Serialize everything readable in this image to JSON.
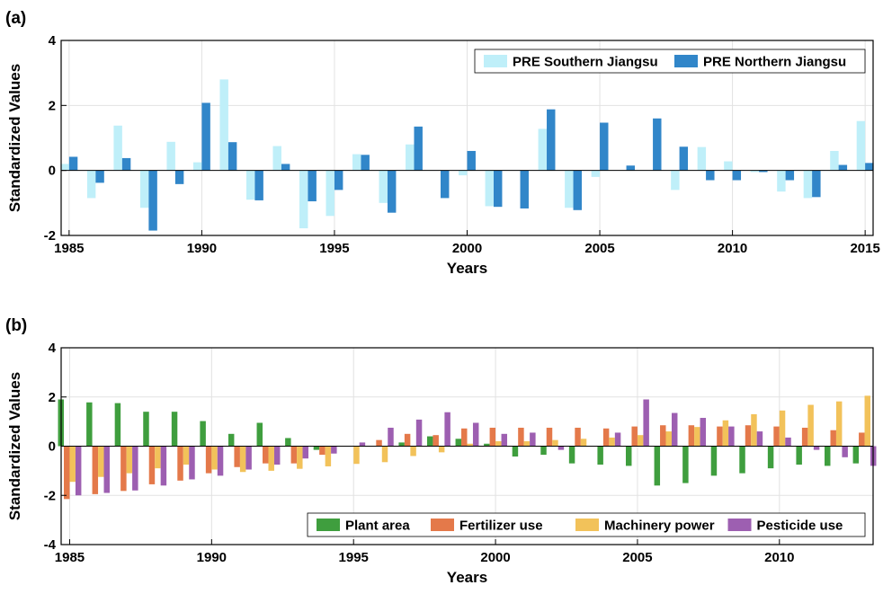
{
  "colors": {
    "pre_south": "#bfeff9",
    "pre_north": "#3186c9",
    "plant_area": "#3f9e3e",
    "fertilizer": "#e4794a",
    "machinery": "#f2c25a",
    "pesticide": "#9d5fb1"
  },
  "chart_data": [
    {
      "panel_label": "(a)",
      "type": "bar",
      "xlabel": "Years",
      "ylabel": "Standardized Values",
      "xlim": [
        1984.7,
        2015.3
      ],
      "ylim": [
        -2,
        4
      ],
      "xticks": [
        1985,
        1990,
        1995,
        2000,
        2005,
        2010,
        2015
      ],
      "yticks": [
        -2,
        0,
        2,
        4
      ],
      "grid": true,
      "legend_position": "top-right",
      "x": [
        1985,
        1986,
        1987,
        1988,
        1989,
        1990,
        1991,
        1992,
        1993,
        1994,
        1995,
        1996,
        1997,
        1998,
        1999,
        2000,
        2001,
        2002,
        2003,
        2004,
        2005,
        2006,
        2007,
        2008,
        2009,
        2010,
        2011,
        2012,
        2013,
        2014,
        2015
      ],
      "series": [
        {
          "name": "PRE Southern Jiangsu",
          "color_key": "pre_south",
          "values": [
            0.2,
            -0.85,
            1.38,
            -1.15,
            0.88,
            0.25,
            2.8,
            -0.9,
            0.75,
            -1.78,
            -1.4,
            0.5,
            -1.0,
            0.8,
            0.0,
            -0.15,
            -1.1,
            0.0,
            1.28,
            -1.15,
            -0.2,
            0.0,
            0.0,
            -0.6,
            0.72,
            0.28,
            -0.05,
            -0.65,
            -0.85,
            0.6,
            1.52
          ]
        },
        {
          "name": "PRE Northern Jiangsu",
          "color_key": "pre_north",
          "values": [
            0.42,
            -0.38,
            0.38,
            -1.85,
            -0.42,
            2.08,
            0.87,
            -0.92,
            0.2,
            -0.95,
            -0.6,
            0.48,
            -1.3,
            1.35,
            -0.85,
            0.6,
            -1.12,
            -1.17,
            1.88,
            -1.22,
            1.47,
            0.15,
            1.6,
            0.73,
            -0.3,
            -0.3,
            -0.05,
            -0.3,
            -0.82,
            0.17,
            0.23
          ]
        }
      ]
    },
    {
      "panel_label": "(b)",
      "type": "bar",
      "xlabel": "Years",
      "ylabel": "Standardized Values",
      "xlim": [
        1984.7,
        2013.3
      ],
      "ylim": [
        -4,
        4
      ],
      "xticks": [
        1985,
        1990,
        1995,
        2000,
        2005,
        2010
      ],
      "yticks": [
        -4,
        -2,
        0,
        2,
        4
      ],
      "grid": true,
      "legend_position": "bottom-right",
      "x": [
        1985,
        1986,
        1987,
        1988,
        1989,
        1990,
        1991,
        1992,
        1993,
        1994,
        1995,
        1996,
        1997,
        1998,
        1999,
        2000,
        2001,
        2002,
        2003,
        2004,
        2005,
        2006,
        2007,
        2008,
        2009,
        2010,
        2011,
        2012,
        2013
      ],
      "series": [
        {
          "name": "Plant area",
          "color_key": "plant_area",
          "values": [
            1.9,
            1.78,
            1.75,
            1.4,
            1.4,
            1.02,
            0.5,
            0.95,
            0.33,
            -0.15,
            0.0,
            0.0,
            0.15,
            0.4,
            0.3,
            0.1,
            -0.42,
            -0.35,
            -0.7,
            -0.75,
            -0.8,
            -1.6,
            -1.5,
            -1.2,
            -1.1,
            -0.9,
            -0.75,
            -0.8,
            -0.7
          ]
        },
        {
          "name": "Fertilizer use",
          "color_key": "fertilizer",
          "values": [
            -2.15,
            -1.95,
            -1.82,
            -1.55,
            -1.4,
            -1.1,
            -0.85,
            -0.7,
            -0.7,
            -0.35,
            0.0,
            0.25,
            0.5,
            0.45,
            0.72,
            0.75,
            0.75,
            0.75,
            0.75,
            0.72,
            0.8,
            0.85,
            0.85,
            0.8,
            0.85,
            0.8,
            0.75,
            0.65,
            0.55
          ]
        },
        {
          "name": "Machinery power",
          "color_key": "machinery",
          "values": [
            -1.45,
            -1.25,
            -1.1,
            -0.9,
            -0.75,
            -0.95,
            -1.05,
            -1.0,
            -0.92,
            -0.82,
            -0.72,
            -0.65,
            -0.4,
            -0.25,
            0.1,
            0.2,
            0.2,
            0.25,
            0.3,
            0.35,
            0.45,
            0.6,
            0.78,
            1.05,
            1.3,
            1.45,
            1.68,
            1.82,
            2.05
          ]
        },
        {
          "name": "Pesticide use",
          "color_key": "pesticide",
          "values": [
            -2.0,
            -1.9,
            -1.8,
            -1.6,
            -1.35,
            -1.2,
            -0.95,
            -0.75,
            -0.5,
            -0.3,
            0.15,
            0.75,
            1.08,
            1.38,
            0.95,
            0.5,
            0.55,
            -0.15,
            0.0,
            0.55,
            1.9,
            1.35,
            1.15,
            0.8,
            0.6,
            0.35,
            -0.15,
            -0.45,
            -0.8
          ]
        }
      ]
    }
  ]
}
